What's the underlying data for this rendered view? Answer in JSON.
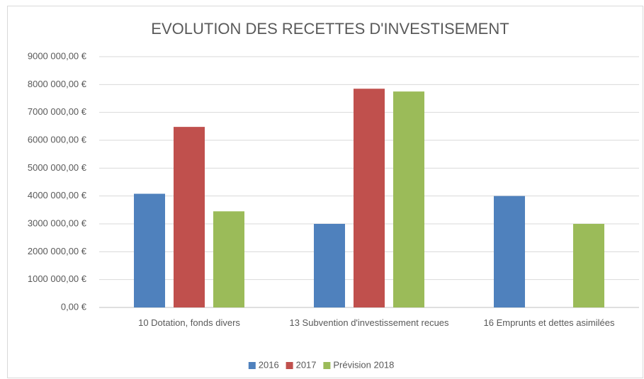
{
  "chart_data": {
    "type": "bar",
    "title": "EVOLUTION DES RECETTES D'INVESTISEMENT",
    "categories": [
      "10 Dotation, fonds divers",
      "13 Subvention d'investissement recues",
      "16 Emprunts et dettes asimilées"
    ],
    "series": [
      {
        "name": "2016",
        "color": "#4f81bd",
        "values": [
          4080000,
          3000000,
          4000000
        ]
      },
      {
        "name": "2017",
        "color": "#c0504d",
        "values": [
          6480000,
          7850000,
          0
        ]
      },
      {
        "name": "Prévision 2018",
        "color": "#9bbb59",
        "values": [
          3450000,
          7750000,
          3000000
        ]
      }
    ],
    "ylim": [
      0,
      9000000
    ],
    "yticks": [
      {
        "value": 0,
        "label": "0,00 €"
      },
      {
        "value": 1000000,
        "label": "1000 000,00 €"
      },
      {
        "value": 2000000,
        "label": "2000 000,00 €"
      },
      {
        "value": 3000000,
        "label": "3000 000,00 €"
      },
      {
        "value": 4000000,
        "label": "4000 000,00 €"
      },
      {
        "value": 5000000,
        "label": "5000 000,00 €"
      },
      {
        "value": 6000000,
        "label": "6000 000,00 €"
      },
      {
        "value": 7000000,
        "label": "7000 000,00 €"
      },
      {
        "value": 8000000,
        "label": "8000 000,00 €"
      },
      {
        "value": 9000000,
        "label": "9000 000,00 €"
      }
    ],
    "grid": true,
    "legend": "bottom"
  }
}
